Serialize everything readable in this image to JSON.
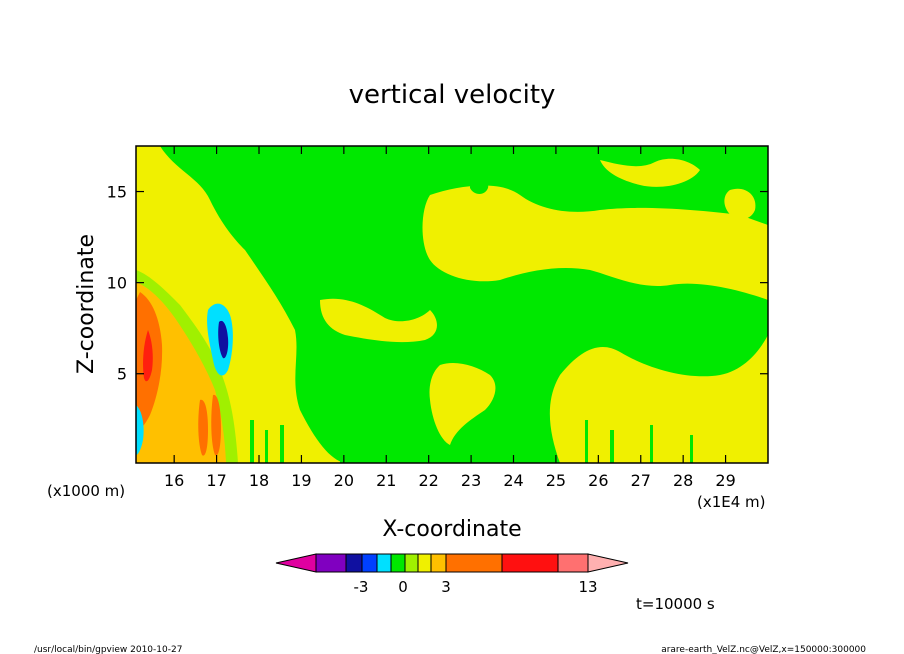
{
  "chart_data": {
    "type": "heatmap",
    "title": "vertical velocity",
    "xlabel": "X-coordinate",
    "ylabel": "Z-coordinate",
    "x_unit": "(x1E4 m)",
    "y_unit": "(x1000 m)",
    "x_ticks": [
      "16",
      "17",
      "18",
      "19",
      "20",
      "21",
      "22",
      "23",
      "24",
      "25",
      "26",
      "27",
      "28",
      "29"
    ],
    "y_ticks": [
      "5",
      "10",
      "15"
    ],
    "xlim": [
      15.1,
      30
    ],
    "ylim": [
      0.1,
      17.5
    ],
    "colorbar": {
      "labels": [
        "-3",
        "0",
        "3",
        "13"
      ],
      "colors": [
        "#e000a0",
        "#8000c0",
        "#1010a0",
        "#0040ff",
        "#00e0ff",
        "#00e800",
        "#a0f000",
        "#f0f000",
        "#ffc000",
        "#ff7000",
        "#ff1010",
        "#ff7070",
        "#ffb0b0"
      ]
    },
    "fields": {
      "background_value": "0 to 1 (yellow)",
      "notable": [
        {
          "name": "updraft core",
          "x": 15.4,
          "z": 6.5,
          "level": "7 to 13"
        },
        {
          "name": "downdraft",
          "x": 17.1,
          "z": 7.0,
          "level": "-3 to -1"
        }
      ]
    },
    "time_label": "t=10000 s"
  },
  "footer": {
    "left": "/usr/local/bin/gpview   2010-10-27",
    "right": "arare-earth_VelZ.nc@VelZ,x=150000:300000"
  }
}
